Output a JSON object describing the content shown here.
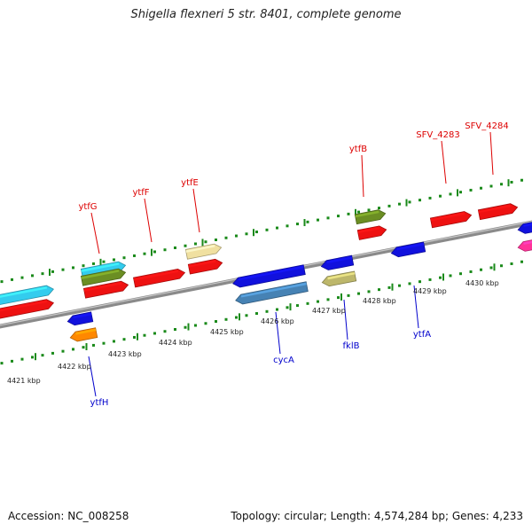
{
  "title": "Shigella flexneri 5 str. 8401, complete genome",
  "footer": {
    "accession": "Accession: NC_008258",
    "topology": "Topology: circular; Length: 4,574,284 bp; Genes: 4,233"
  },
  "colors": {
    "backbone": "#8a8a8a",
    "tick": "#1a8a1a",
    "forward_label": "#dd0000",
    "reverse_label": "#0000cc"
  },
  "scale_labels": [
    "4421 kbp",
    "4422 kbp",
    "4423 kbp",
    "4424 kbp",
    "4425 kbp",
    "4426 kbp",
    "4427 kbp",
    "4428 kbp",
    "4429 kbp",
    "4430 kbp"
  ],
  "gene_labels": {
    "forward": [
      "ytfG",
      "ytfF",
      "ytfE",
      "ytfB",
      "SFV_4283",
      "SFV_4284"
    ],
    "reverse": [
      "ytfH",
      "cycA",
      "fklB",
      "ytfA"
    ]
  },
  "features": [
    {
      "strand": "forward",
      "color": "#33ccee"
    },
    {
      "strand": "forward",
      "color": "#ee1111"
    },
    {
      "strand": "forward",
      "color": "#33ccee"
    },
    {
      "strand": "forward",
      "color": "#6b8e23"
    },
    {
      "strand": "forward",
      "color": "#ee1111"
    },
    {
      "strand": "forward",
      "color": "#ee1111"
    },
    {
      "strand": "forward",
      "color": "#f0e0a0"
    },
    {
      "strand": "forward",
      "color": "#ee1111"
    },
    {
      "strand": "forward",
      "color": "#6b8e23"
    },
    {
      "strand": "forward",
      "color": "#ee1111"
    },
    {
      "strand": "forward",
      "color": "#ee1111"
    },
    {
      "strand": "forward",
      "color": "#ee1111"
    },
    {
      "strand": "reverse",
      "color": "#1111dd"
    },
    {
      "strand": "reverse",
      "color": "#ff8800"
    },
    {
      "strand": "reverse",
      "color": "#1111dd"
    },
    {
      "strand": "reverse",
      "color": "#4682b4"
    },
    {
      "strand": "reverse",
      "color": "#1111dd"
    },
    {
      "strand": "reverse",
      "color": "#bdb76b"
    },
    {
      "strand": "reverse",
      "color": "#1111dd"
    },
    {
      "strand": "reverse",
      "color": "#1111dd"
    },
    {
      "strand": "reverse",
      "color": "#ff3399"
    }
  ]
}
